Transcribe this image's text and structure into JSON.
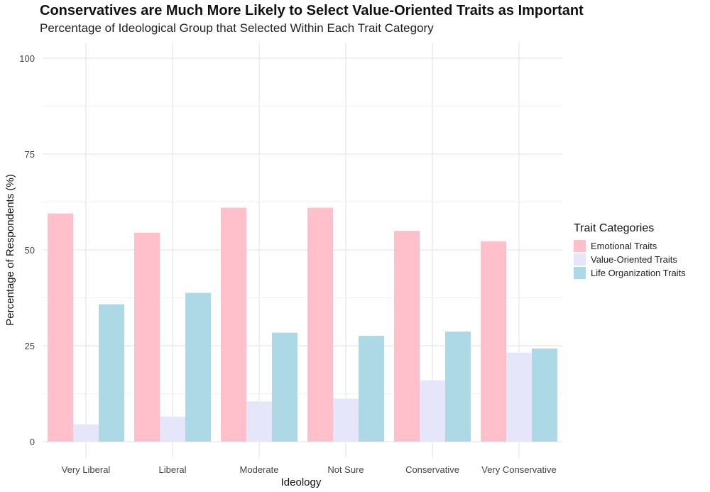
{
  "chart_data": {
    "type": "bar",
    "title": "Conservatives are Much More Likely to Select Value-Oriented Traits as Important",
    "subtitle": "Percentage of Ideological Group that Selected Within Each Trait Category",
    "xlabel": "Ideology",
    "ylabel": "Percentage of Respondents (%)",
    "ylim": [
      0,
      100
    ],
    "yticks": [
      0,
      25,
      50,
      75,
      100
    ],
    "grid": true,
    "legend_title": "Trait Categories",
    "legend_position": "right",
    "categories": [
      "Very Liberal",
      "Liberal",
      "Moderate",
      "Not Sure",
      "Conservative",
      "Very Conservative"
    ],
    "series": [
      {
        "name": "Emotional Traits",
        "color": "#ffc0cb",
        "values": [
          59.5,
          54.5,
          61,
          61,
          55,
          52.2
        ]
      },
      {
        "name": "Value-Oriented Traits",
        "color": "#e6e6fa",
        "values": [
          4.5,
          6.5,
          10.5,
          11.2,
          16,
          23.2
        ]
      },
      {
        "name": "Life Organization Traits",
        "color": "#add8e6",
        "values": [
          35.8,
          38.8,
          28.4,
          27.6,
          28.7,
          24.3
        ]
      }
    ]
  }
}
